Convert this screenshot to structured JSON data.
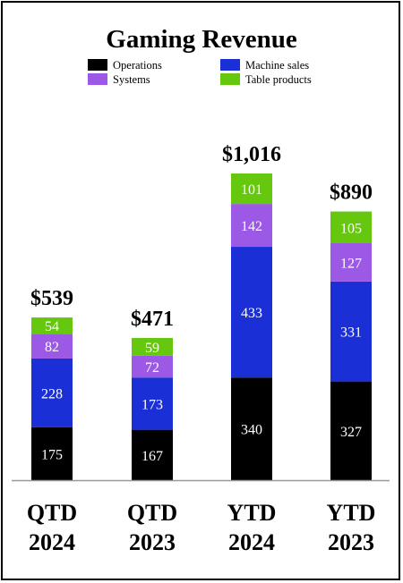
{
  "chart_data": {
    "type": "bar",
    "stacked": true,
    "title": "Gaming Revenue",
    "categories": [
      [
        "QTD",
        "2024"
      ],
      [
        "QTD",
        "2023"
      ],
      [
        "YTD",
        "2024"
      ],
      [
        "YTD",
        "2023"
      ]
    ],
    "totals": [
      "$539",
      "$471",
      "$1,016",
      "$890"
    ],
    "series": [
      {
        "name": "Operations",
        "color": "#000000",
        "label_color": "#ffffff",
        "values": [
          175,
          167,
          340,
          327
        ]
      },
      {
        "name": "Machine sales",
        "color": "#1a2fd6",
        "label_color": "#ffffff",
        "values": [
          228,
          173,
          433,
          331
        ]
      },
      {
        "name": "Systems",
        "color": "#9b59e6",
        "label_color": "#ffffff",
        "values": [
          82,
          72,
          142,
          127
        ]
      },
      {
        "name": "Table products",
        "color": "#66c80e",
        "label_color": "#ffffff",
        "values": [
          54,
          59,
          101,
          105
        ]
      }
    ],
    "legend": {
      "position": "top",
      "columns": 2
    },
    "grid": false,
    "ylim": [
      0,
      1016
    ]
  }
}
